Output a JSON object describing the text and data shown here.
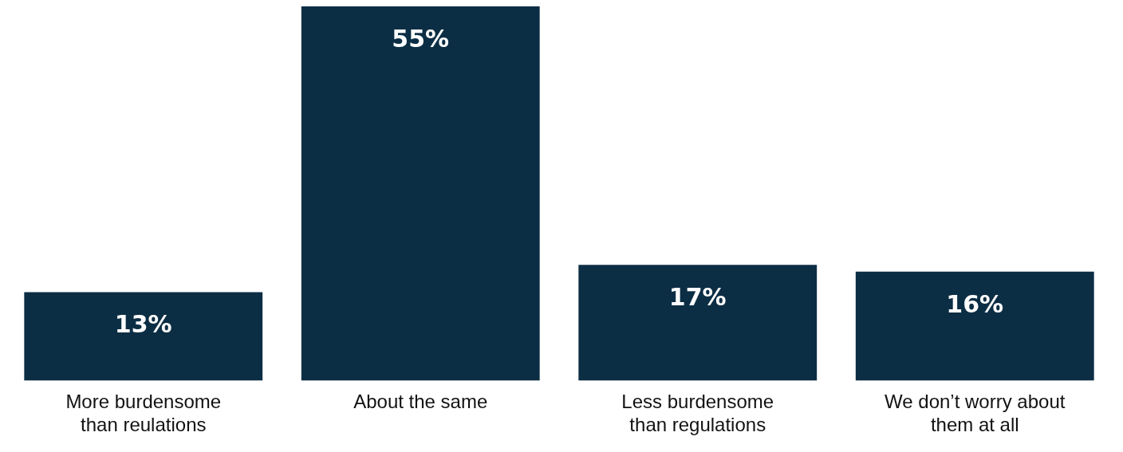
{
  "chart_data": {
    "type": "bar",
    "categories": [
      "More burdensome than reulations",
      "About the same",
      "Less burdensome than regulations",
      "We don’t worry about them at all"
    ],
    "values": [
      13,
      55,
      17,
      16
    ],
    "color": "#0c2e44",
    "value_labels": [
      "13%",
      "55%",
      "17%",
      "16%"
    ],
    "tick_labels": "x",
    "grid": false,
    "legend": false
  }
}
